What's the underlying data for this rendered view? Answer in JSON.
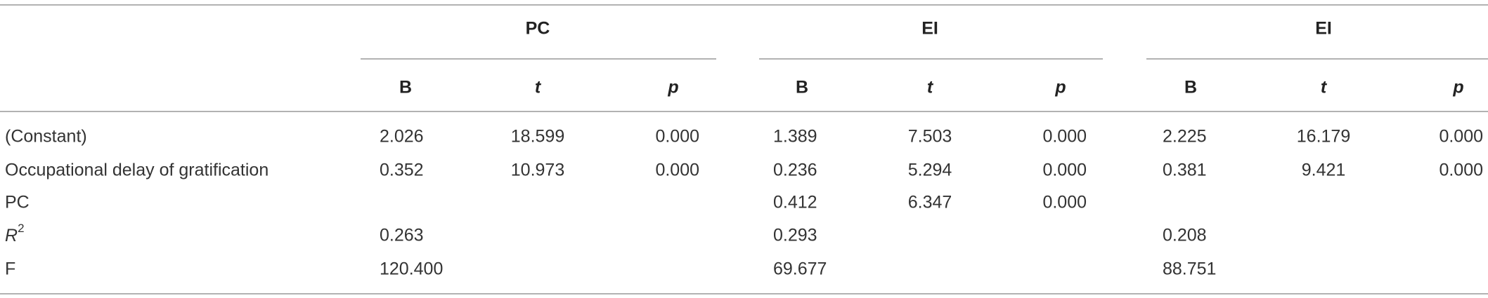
{
  "table": {
    "groups": [
      {
        "title": "PC",
        "columns": [
          "B",
          "t",
          "p"
        ]
      },
      {
        "title": "EI",
        "columns": [
          "B",
          "t",
          "p"
        ]
      },
      {
        "title": "EI",
        "columns": [
          "B",
          "t",
          "p"
        ]
      }
    ],
    "rows": [
      {
        "label": "(Constant)",
        "cells": [
          "2.026",
          "18.599",
          "0.000",
          "1.389",
          "7.503",
          "0.000",
          "2.225",
          "16.179",
          "0.000"
        ]
      },
      {
        "label": "Occupational delay of gratification",
        "cells": [
          "0.352",
          "10.973",
          "0.000",
          "0.236",
          "5.294",
          "0.000",
          "0.381",
          "9.421",
          "0.000"
        ]
      },
      {
        "label": "PC",
        "cells": [
          null,
          null,
          null,
          "0.412",
          "6.347",
          "0.000",
          null,
          null,
          null
        ]
      },
      {
        "label": "R",
        "label_sup": "2",
        "cells": [
          "0.263",
          null,
          null,
          "0.293",
          null,
          null,
          "0.208",
          null,
          null
        ]
      },
      {
        "label": "F",
        "cells": [
          "120.400",
          null,
          null,
          "69.677",
          null,
          null,
          "88.751",
          null,
          null
        ]
      }
    ]
  }
}
